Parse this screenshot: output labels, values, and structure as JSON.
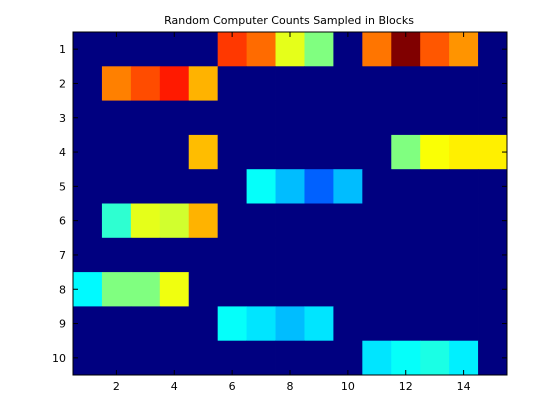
{
  "chart_data": {
    "type": "heatmap",
    "title": "Random Computer Counts Sampled in Blocks",
    "xlabel": "",
    "ylabel": "",
    "x_ticks": [
      "2",
      "4",
      "6",
      "8",
      "10",
      "12",
      "14"
    ],
    "y_ticks": [
      "1",
      "2",
      "3",
      "4",
      "5",
      "6",
      "7",
      "8",
      "9",
      "10"
    ],
    "xlim": [
      0.5,
      15.5
    ],
    "ylim": [
      0.5,
      10.5
    ],
    "y_direction": "reversed",
    "colormap": "jet",
    "clim": [
      0,
      10
    ],
    "grid": false,
    "columns": 15,
    "rows": 10,
    "values": [
      [
        0,
        0,
        0,
        0,
        0,
        8.2,
        7.7,
        6.0,
        5.0,
        0,
        7.6,
        10.0,
        7.9,
        7.3,
        0
      ],
      [
        0,
        7.5,
        8.0,
        8.5,
        7.0,
        0,
        0,
        0,
        0,
        0,
        0,
        0,
        0,
        0,
        0
      ],
      [
        0,
        0,
        0,
        0,
        0,
        0,
        0,
        0,
        0,
        0,
        0,
        0,
        0,
        0,
        0
      ],
      [
        0,
        0,
        0,
        0,
        6.9,
        0,
        0,
        0,
        0,
        0,
        0,
        5.0,
        6.2,
        6.4,
        6.4
      ],
      [
        0,
        0,
        0,
        0,
        0,
        0,
        3.8,
        3.1,
        2.2,
        3.1,
        0,
        0,
        0,
        0,
        0
      ],
      [
        0,
        4.2,
        6.0,
        5.8,
        7.0,
        0,
        0,
        0,
        0,
        0,
        0,
        0,
        0,
        0,
        0
      ],
      [
        0,
        0,
        0,
        0,
        0,
        0,
        0,
        0,
        0,
        0,
        0,
        0,
        0,
        0,
        0
      ],
      [
        3.7,
        5.0,
        5.0,
        6.1,
        0,
        0,
        0,
        0,
        0,
        0,
        0,
        0,
        0,
        0,
        0
      ],
      [
        0,
        0,
        0,
        0,
        0,
        3.8,
        3.5,
        3.1,
        3.5,
        0,
        0,
        0,
        0,
        0,
        0
      ],
      [
        0,
        0,
        0,
        0,
        0,
        0,
        0,
        0,
        0,
        0,
        3.5,
        3.8,
        4.0,
        3.6,
        0
      ]
    ]
  }
}
